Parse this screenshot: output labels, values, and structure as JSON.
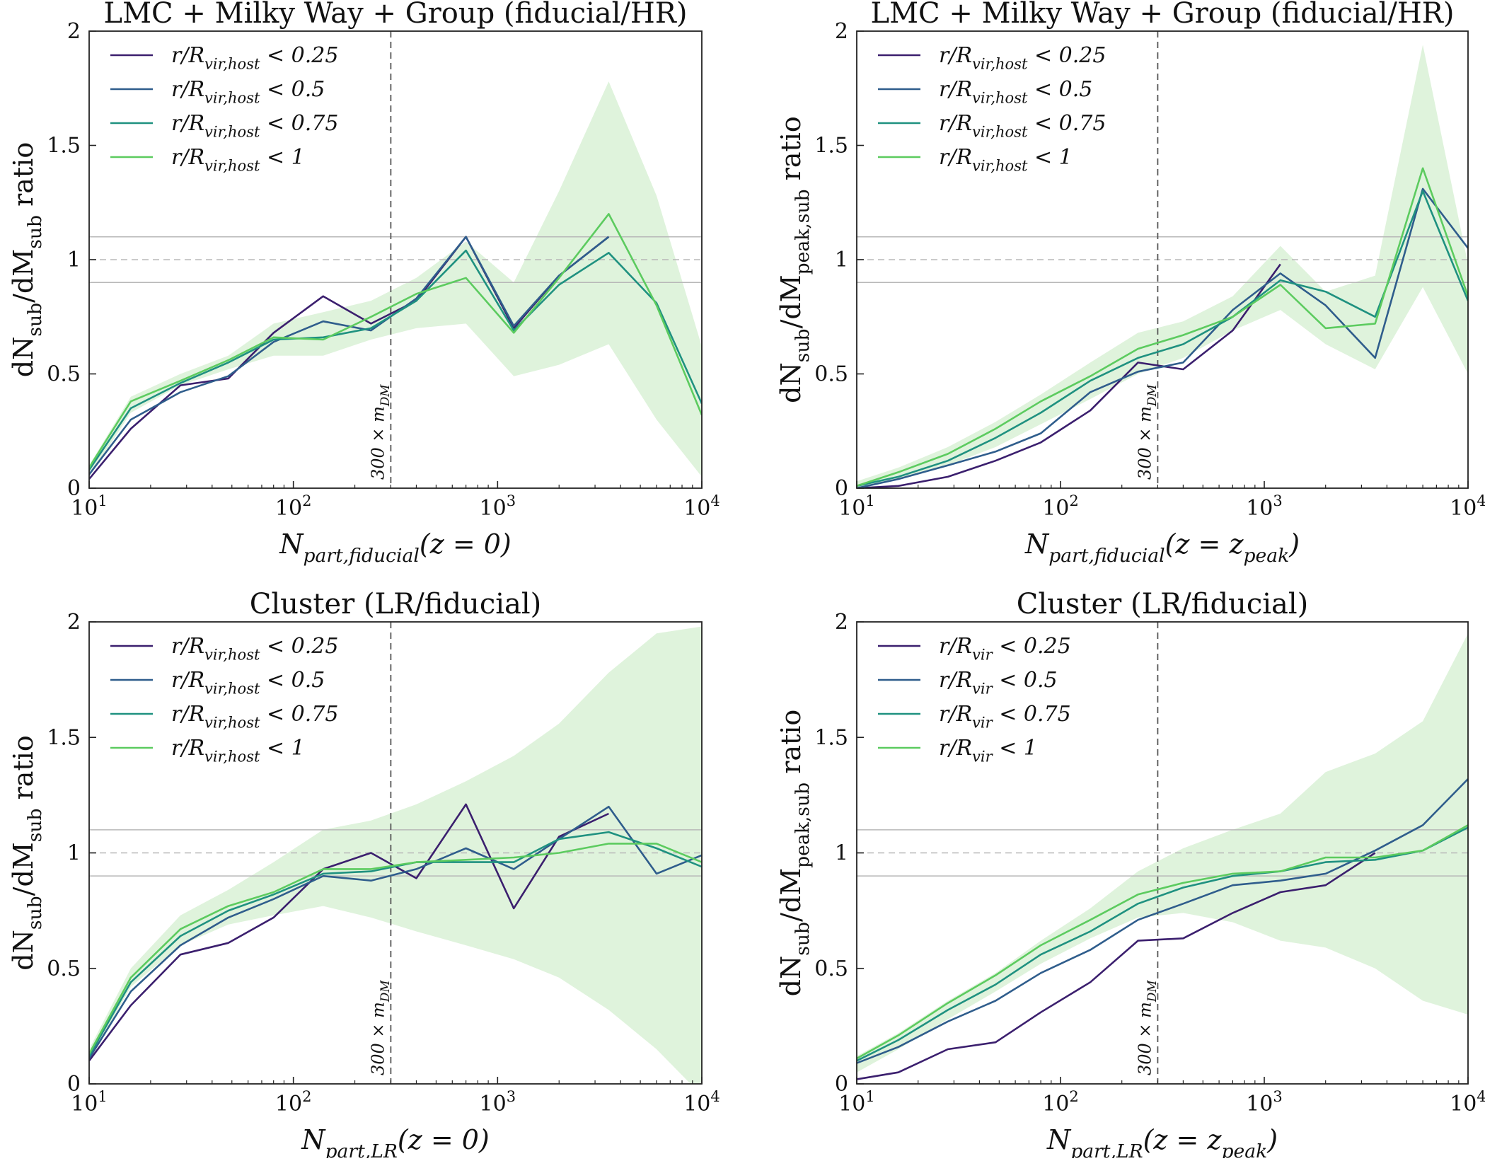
{
  "figure": {
    "description_free": true
  },
  "colors": {
    "r025": "#3b1f6e",
    "r05": "#2f5d8c",
    "r075": "#1f9180",
    "r1": "#5ccb5f",
    "band": "#dff3dc",
    "ref_line": "#b8b8b8",
    "mdm_line": "#555555"
  },
  "chart_data": [
    {
      "type": "line",
      "title": "LMC + Milky Way + Group (fiducial/HR)",
      "xlabel": "N_part,fiducial(z = 0)",
      "ylabel": "dN_sub/dM_sub ratio",
      "xscale": "log",
      "xlim": [
        10,
        10000
      ],
      "ylim": [
        0,
        2
      ],
      "xticks": [
        10,
        100,
        1000,
        10000
      ],
      "xtick_labels": [
        "10^1",
        "10^2",
        "10^3",
        "10^4"
      ],
      "yticks": [
        0,
        0.5,
        1,
        1.5,
        2
      ],
      "ytick_labels": [
        "0",
        "0.5",
        "1",
        "1.5",
        "2"
      ],
      "reference_lines": [
        0.9,
        1.0,
        1.1
      ],
      "vline": {
        "x": 300,
        "label": "300 × m_DM"
      },
      "legend_position": "top-left",
      "band": {
        "x": [
          10,
          16,
          28,
          48,
          80,
          140,
          240,
          400,
          700,
          1200,
          2000,
          3500,
          6000,
          10000
        ],
        "lower": [
          0.05,
          0.33,
          0.45,
          0.52,
          0.58,
          0.58,
          0.65,
          0.7,
          0.72,
          0.49,
          0.54,
          0.63,
          0.3,
          0.05
        ],
        "upper": [
          0.1,
          0.4,
          0.5,
          0.58,
          0.72,
          0.77,
          0.82,
          0.92,
          1.08,
          0.9,
          1.3,
          1.78,
          1.28,
          0.62
        ]
      },
      "series": [
        {
          "name": "r/R_vir,host < 0.25",
          "color_key": "r025",
          "x": [
            10,
            16,
            28,
            48,
            80,
            140,
            240,
            400,
            700,
            1200,
            2000,
            3500
          ],
          "values": [
            0.04,
            0.26,
            0.45,
            0.48,
            0.68,
            0.84,
            0.72,
            0.82,
            1.1,
            0.7,
            0.93,
            1.1
          ]
        },
        {
          "name": "r/R_vir,host < 0.5",
          "color_key": "r05",
          "x": [
            10,
            16,
            28,
            48,
            80,
            140,
            240,
            400,
            700,
            1200,
            2000,
            3500
          ],
          "values": [
            0.06,
            0.3,
            0.42,
            0.49,
            0.64,
            0.73,
            0.69,
            0.83,
            1.1,
            0.71,
            0.93,
            1.1
          ]
        },
        {
          "name": "r/R_vir,host < 0.75",
          "color_key": "r075",
          "x": [
            10,
            16,
            28,
            48,
            80,
            140,
            240,
            400,
            700,
            1200,
            2000,
            3500,
            6000,
            10000
          ],
          "values": [
            0.08,
            0.35,
            0.46,
            0.55,
            0.65,
            0.66,
            0.7,
            0.82,
            1.04,
            0.69,
            0.89,
            1.03,
            0.81,
            0.37
          ]
        },
        {
          "name": "r/R_vir,host < 1",
          "color_key": "r1",
          "x": [
            10,
            16,
            28,
            48,
            80,
            140,
            240,
            400,
            700,
            1200,
            2000,
            3500,
            6000,
            10000
          ],
          "values": [
            0.09,
            0.38,
            0.47,
            0.56,
            0.66,
            0.65,
            0.75,
            0.85,
            0.92,
            0.68,
            0.92,
            1.2,
            0.8,
            0.32
          ]
        }
      ]
    },
    {
      "type": "line",
      "title": "LMC + Milky Way + Group (fiducial/HR)",
      "xlabel": "N_part,fiducial(z = z_peak)",
      "ylabel": "dN_sub/dM_peak,sub ratio",
      "xscale": "log",
      "xlim": [
        10,
        10000
      ],
      "ylim": [
        0,
        2
      ],
      "xticks": [
        10,
        100,
        1000,
        10000
      ],
      "xtick_labels": [
        "10^1",
        "10^2",
        "10^3",
        "10^4"
      ],
      "yticks": [
        0,
        0.5,
        1,
        1.5,
        2
      ],
      "ytick_labels": [
        "0",
        "0.5",
        "1",
        "1.5",
        "2"
      ],
      "reference_lines": [
        0.9,
        1.0,
        1.1
      ],
      "vline": {
        "x": 300,
        "label": "300 × m_DM"
      },
      "legend_position": "top-left",
      "band": {
        "x": [
          10,
          16,
          28,
          48,
          80,
          140,
          240,
          400,
          700,
          1200,
          2000,
          3500,
          6000,
          10000
        ],
        "lower": [
          0.0,
          0.04,
          0.1,
          0.18,
          0.28,
          0.39,
          0.5,
          0.57,
          0.69,
          0.78,
          0.63,
          0.52,
          0.88,
          0.5
        ],
        "upper": [
          0.03,
          0.09,
          0.18,
          0.29,
          0.41,
          0.55,
          0.68,
          0.73,
          0.84,
          1.06,
          0.86,
          0.93,
          1.94,
          0.98
        ]
      },
      "series": [
        {
          "name": "r/R_vir,host < 0.25",
          "color_key": "r025",
          "x": [
            10,
            16,
            28,
            48,
            80,
            140,
            240,
            400,
            700,
            1200
          ],
          "values": [
            0.0,
            0.01,
            0.05,
            0.12,
            0.2,
            0.34,
            0.55,
            0.52,
            0.69,
            0.98
          ]
        },
        {
          "name": "r/R_vir,host < 0.5",
          "color_key": "r05",
          "x": [
            10,
            16,
            28,
            48,
            80,
            140,
            240,
            400,
            700,
            1200,
            2000,
            3500,
            6000,
            10000
          ],
          "values": [
            0.0,
            0.04,
            0.1,
            0.16,
            0.24,
            0.42,
            0.51,
            0.55,
            0.78,
            0.94,
            0.8,
            0.57,
            1.31,
            1.05
          ]
        },
        {
          "name": "r/R_vir,host < 0.75",
          "color_key": "r075",
          "x": [
            10,
            16,
            28,
            48,
            80,
            140,
            240,
            400,
            700,
            1200,
            2000,
            3500,
            6000,
            10000
          ],
          "values": [
            0.01,
            0.05,
            0.12,
            0.22,
            0.33,
            0.47,
            0.57,
            0.63,
            0.75,
            0.91,
            0.86,
            0.75,
            1.3,
            0.82
          ]
        },
        {
          "name": "r/R_vir,host < 1",
          "color_key": "r1",
          "x": [
            10,
            16,
            28,
            48,
            80,
            140,
            240,
            400,
            700,
            1200,
            2000,
            3500,
            6000,
            10000
          ],
          "values": [
            0.01,
            0.07,
            0.15,
            0.26,
            0.38,
            0.49,
            0.61,
            0.67,
            0.75,
            0.89,
            0.7,
            0.72,
            1.4,
            0.84
          ]
        }
      ]
    },
    {
      "type": "line",
      "title": "Cluster (LR/fiducial)",
      "xlabel": "N_part,LR(z = 0)",
      "ylabel": "dN_sub/dM_sub ratio",
      "xscale": "log",
      "xlim": [
        10,
        10000
      ],
      "ylim": [
        0,
        2
      ],
      "xticks": [
        10,
        100,
        1000,
        10000
      ],
      "xtick_labels": [
        "10^1",
        "10^2",
        "10^3",
        "10^4"
      ],
      "yticks": [
        0,
        0.5,
        1,
        1.5,
        2
      ],
      "ytick_labels": [
        "0",
        "0.5",
        "1",
        "1.5",
        "2"
      ],
      "reference_lines": [
        0.9,
        1.0,
        1.1
      ],
      "vline": {
        "x": 300,
        "label": "300 × m_DM"
      },
      "legend_position": "top-left",
      "band": {
        "x": [
          10,
          16,
          28,
          48,
          80,
          140,
          240,
          400,
          700,
          1200,
          2000,
          3500,
          6000,
          10000
        ],
        "lower": [
          0.1,
          0.42,
          0.6,
          0.69,
          0.73,
          0.77,
          0.72,
          0.66,
          0.6,
          0.54,
          0.46,
          0.32,
          0.15,
          -0.05
        ],
        "upper": [
          0.15,
          0.5,
          0.73,
          0.84,
          0.96,
          1.1,
          1.14,
          1.21,
          1.31,
          1.42,
          1.56,
          1.78,
          1.95,
          1.98
        ]
      },
      "series": [
        {
          "name": "r/R_vir,host < 0.25",
          "color_key": "r025",
          "x": [
            10,
            16,
            28,
            48,
            80,
            140,
            240,
            400,
            700,
            1200,
            2000,
            3500
          ],
          "values": [
            0.1,
            0.34,
            0.56,
            0.61,
            0.72,
            0.93,
            1.0,
            0.89,
            1.21,
            0.76,
            1.07,
            1.17
          ]
        },
        {
          "name": "r/R_vir,host < 0.5",
          "color_key": "r05",
          "x": [
            10,
            16,
            28,
            48,
            80,
            140,
            240,
            400,
            700,
            1200,
            2000,
            3500,
            6000,
            10000
          ],
          "values": [
            0.11,
            0.4,
            0.6,
            0.72,
            0.8,
            0.9,
            0.88,
            0.93,
            1.02,
            0.93,
            1.06,
            1.2,
            0.91,
            0.99
          ]
        },
        {
          "name": "r/R_vir,host < 0.75",
          "color_key": "r075",
          "x": [
            10,
            16,
            28,
            48,
            80,
            140,
            240,
            400,
            700,
            1200,
            2000,
            3500,
            6000,
            10000
          ],
          "values": [
            0.12,
            0.44,
            0.64,
            0.75,
            0.82,
            0.91,
            0.92,
            0.96,
            0.96,
            0.96,
            1.06,
            1.09,
            1.02,
            0.94
          ]
        },
        {
          "name": "r/R_vir,host < 1",
          "color_key": "r1",
          "x": [
            10,
            16,
            28,
            48,
            80,
            140,
            240,
            400,
            700,
            1200,
            2000,
            3500,
            6000,
            10000
          ],
          "values": [
            0.13,
            0.46,
            0.67,
            0.77,
            0.83,
            0.93,
            0.93,
            0.96,
            0.97,
            0.98,
            1.0,
            1.04,
            1.04,
            0.96
          ]
        }
      ]
    },
    {
      "type": "line",
      "title": "Cluster (LR/fiducial)",
      "xlabel": "N_part,LR(z = z_peak)",
      "ylabel": "dN_sub/dM_peak,sub ratio",
      "xscale": "log",
      "xlim": [
        10,
        10000
      ],
      "ylim": [
        0,
        2
      ],
      "xticks": [
        10,
        100,
        1000,
        10000
      ],
      "xtick_labels": [
        "10^1",
        "10^2",
        "10^3",
        "10^4"
      ],
      "yticks": [
        0,
        0.5,
        1,
        1.5,
        2
      ],
      "ytick_labels": [
        "0",
        "0.5",
        "1",
        "1.5",
        "2"
      ],
      "reference_lines": [
        0.9,
        1.0,
        1.1
      ],
      "vline": {
        "x": 300,
        "label": "300 × m_DM"
      },
      "legend_position": "top-left",
      "band": {
        "x": [
          10,
          16,
          28,
          48,
          80,
          140,
          240,
          400,
          700,
          1200,
          2000,
          3500,
          6000,
          10000
        ],
        "lower": [
          0.05,
          0.15,
          0.28,
          0.4,
          0.52,
          0.63,
          0.72,
          0.74,
          0.7,
          0.62,
          0.59,
          0.5,
          0.36,
          0.3
        ],
        "upper": [
          0.12,
          0.22,
          0.36,
          0.48,
          0.62,
          0.76,
          0.92,
          1.02,
          1.1,
          1.17,
          1.35,
          1.43,
          1.57,
          1.95
        ]
      },
      "series": [
        {
          "name": "r/R_vir < 0.25",
          "color_key": "r025",
          "x": [
            10,
            16,
            28,
            48,
            80,
            140,
            240,
            400,
            700,
            1200,
            2000,
            3500
          ],
          "values": [
            0.02,
            0.05,
            0.15,
            0.18,
            0.31,
            0.44,
            0.62,
            0.63,
            0.74,
            0.83,
            0.86,
            1.0
          ]
        },
        {
          "name": "r/R_vir < 0.5",
          "color_key": "r05",
          "x": [
            10,
            16,
            28,
            48,
            80,
            140,
            240,
            400,
            700,
            1200,
            2000,
            3500,
            6000,
            10000
          ],
          "values": [
            0.09,
            0.16,
            0.27,
            0.36,
            0.48,
            0.58,
            0.71,
            0.78,
            0.86,
            0.88,
            0.91,
            1.01,
            1.12,
            1.32
          ]
        },
        {
          "name": "r/R_vir < 0.75",
          "color_key": "r075",
          "x": [
            10,
            16,
            28,
            48,
            80,
            140,
            240,
            400,
            700,
            1200,
            2000,
            3500,
            6000,
            10000
          ],
          "values": [
            0.1,
            0.19,
            0.32,
            0.43,
            0.56,
            0.66,
            0.78,
            0.85,
            0.9,
            0.92,
            0.96,
            0.97,
            1.01,
            1.11
          ]
        },
        {
          "name": "r/R_vir < 1",
          "color_key": "r1",
          "x": [
            10,
            16,
            28,
            48,
            80,
            140,
            240,
            400,
            700,
            1200,
            2000,
            3500,
            6000,
            10000
          ],
          "values": [
            0.11,
            0.21,
            0.35,
            0.47,
            0.6,
            0.71,
            0.82,
            0.87,
            0.91,
            0.92,
            0.98,
            0.98,
            1.01,
            1.12
          ]
        }
      ]
    }
  ]
}
